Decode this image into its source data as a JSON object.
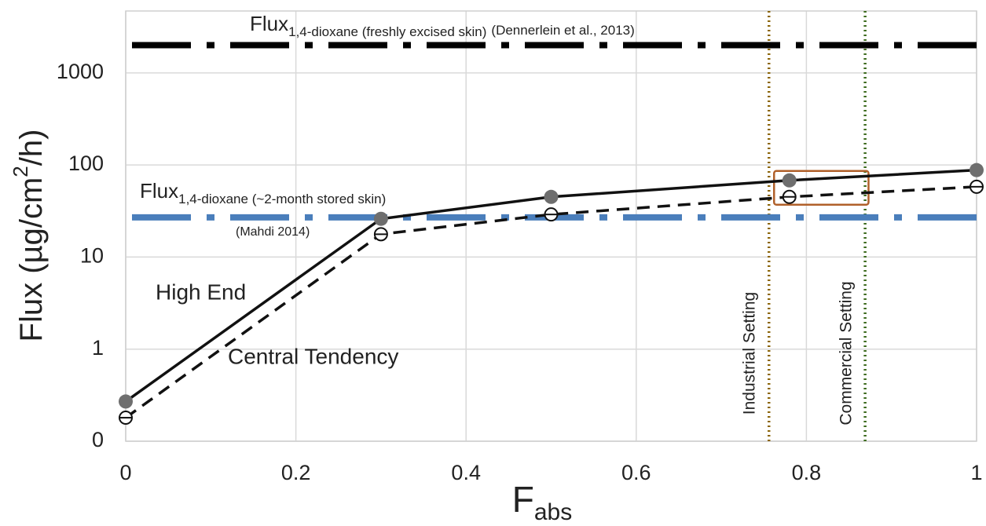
{
  "chart_data": {
    "type": "line",
    "x": [
      0,
      0.3,
      0.5,
      0.78,
      1
    ],
    "xlim": [
      0,
      1
    ],
    "xticks": [
      0,
      0.2,
      0.4,
      0.6,
      0.8,
      1
    ],
    "ylim": [
      0.1,
      4700
    ],
    "yticks": [
      {
        "value": 0.1,
        "label": "0"
      },
      1,
      10,
      100,
      1000
    ],
    "log_y": true,
    "grid": true,
    "x_label": {
      "main": "F",
      "sub": "abs"
    },
    "y_label": {
      "main": "Flux (µg/cm",
      "sup": "2",
      "end": "/h)"
    },
    "series": [
      {
        "name": "High End",
        "color": "#111111",
        "dash": false,
        "marker": "filled",
        "values": [
          0.27,
          26,
          45,
          68,
          88
        ]
      },
      {
        "name": "Central Tendency",
        "color": "#111111",
        "dash": true,
        "marker": "open",
        "values": [
          0.18,
          17.7,
          29,
          45,
          58
        ]
      }
    ],
    "hlines": [
      {
        "value": 2000,
        "color": "#000000",
        "label": "Flux",
        "sub": "1,4-dioxane (freshly excised skin)",
        "note": "(Dennerlein et al., 2013)"
      },
      {
        "value": 27,
        "color": "#4a7ebb",
        "label": "Flux",
        "sub": "1,4-dioxane (~2-month stored skin)",
        "note": "(Mahdi 2014)"
      }
    ],
    "vlines": [
      {
        "value": 0.756,
        "color": "#8b6508",
        "label": "Industrial Setting"
      },
      {
        "value": 0.869,
        "color": "#3d6b1e",
        "label": "Commercial Setting"
      }
    ],
    "highlight_box": {
      "xlim": [
        0.762,
        0.873
      ],
      "ylim": [
        37,
        86
      ],
      "color": "#b0602a"
    }
  }
}
